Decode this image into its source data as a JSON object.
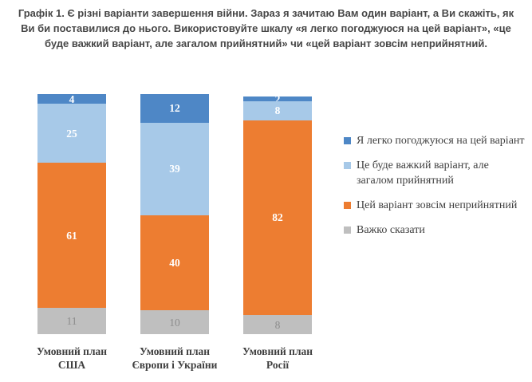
{
  "title": "Графік 1. Є різні варіанти завершення війни. Зараз я зачитаю Вам один варіант, а Ви скажіть, як Ви би поставилися до нього. Використовуйте шкалу «я легко погоджуюся на цей варіант», «це буде важкий варіант, але загалом прийнятний» чи «цей варіант зовсім неприйнятний.",
  "chart_data": {
    "type": "bar",
    "subtype": "stacked-column",
    "title": "Графік 1. Є різні варіанти завершення війни. Зараз я зачитаю Вам один варіант, а Ви скажіть, як Ви би поставилися до нього. Використовуйте шкалу «я легко погоджуюся на цей варіант», «це буде важкий варіант, але загалом прийнятний» чи «цей варіант зовсім неприйнятний.",
    "categories": [
      "Умовний план США",
      "Умовний план Європи і України",
      "Умовний план Росії"
    ],
    "series": [
      {
        "name": "Я легко погоджуюся на цей варіант",
        "color": "#4E87C6",
        "label_color": "#FFFFFF",
        "values": [
          4,
          12,
          2
        ]
      },
      {
        "name": "Це буде важкий варіант, але загалом прийнятний",
        "color": "#A7C9E8",
        "label_color": "#FFFFFF",
        "values": [
          25,
          39,
          8
        ]
      },
      {
        "name": "Цей варіант зовсім неприйнятний",
        "color": "#ED7D31",
        "label_color": "#FFFFFF",
        "values": [
          61,
          40,
          82
        ]
      },
      {
        "name": "Важко сказати",
        "color": "#BFBFBF",
        "label_color": "#8C8C8C",
        "values": [
          11,
          10,
          8
        ]
      }
    ],
    "value_labels": "inside-center",
    "legend_position": "right",
    "grid": false,
    "axes_visible": false,
    "ylim": [
      0,
      101
    ],
    "colors": {
      "title_text": "#474747",
      "axis_label_text": "#404040",
      "legend_text": "#404040"
    }
  }
}
